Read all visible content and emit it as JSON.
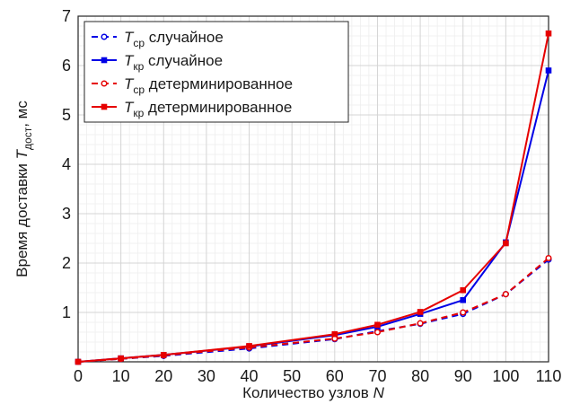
{
  "chart_data": {
    "type": "line",
    "xlabel": {
      "text": "Количество узлов ",
      "var": "N"
    },
    "ylabel": {
      "text": "Время доставки ",
      "var": "T",
      "sub": "дост",
      "unit": ", мс"
    },
    "xlim": [
      0,
      110
    ],
    "ylim": [
      0,
      7
    ],
    "x_ticks": [
      "0",
      "10",
      "20",
      "30",
      "40",
      "50",
      "60",
      "70",
      "80",
      "90",
      "100",
      "110"
    ],
    "y_ticks": [
      "1",
      "2",
      "3",
      "4",
      "5",
      "6",
      "7"
    ],
    "grid": true,
    "minor_grid": true,
    "legend_position": "top-left",
    "x": [
      0,
      10,
      20,
      40,
      60,
      70,
      80,
      90,
      100,
      110
    ],
    "series": [
      {
        "name": "T_ср случайное",
        "legend": {
          "var": "T",
          "sub": "ср",
          "rest": " случайное"
        },
        "color": "#0000e6",
        "dash": true,
        "marker": "circle",
        "values": [
          0.0,
          0.06,
          0.12,
          0.27,
          0.46,
          0.62,
          0.77,
          0.97,
          1.37,
          2.07
        ]
      },
      {
        "name": "T_кр случайное",
        "legend": {
          "var": "T",
          "sub": "кр",
          "rest": " случайное"
        },
        "color": "#0000e6",
        "dash": false,
        "marker": "square",
        "values": [
          0.0,
          0.07,
          0.14,
          0.31,
          0.54,
          0.71,
          0.97,
          1.25,
          2.42,
          5.9
        ]
      },
      {
        "name": "T_ср детерминированное",
        "legend": {
          "var": "T",
          "sub": "ср",
          "rest": " детерминированное"
        },
        "color": "#e60000",
        "dash": true,
        "marker": "circle",
        "values": [
          0.0,
          0.06,
          0.13,
          0.29,
          0.47,
          0.6,
          0.78,
          1.0,
          1.37,
          2.1
        ]
      },
      {
        "name": "T_кр детерминированное",
        "legend": {
          "var": "T",
          "sub": "кр",
          "rest": " детерминированное"
        },
        "color": "#e60000",
        "dash": false,
        "marker": "square",
        "values": [
          0.0,
          0.07,
          0.14,
          0.32,
          0.56,
          0.75,
          1.01,
          1.45,
          2.4,
          6.65
        ]
      }
    ]
  }
}
